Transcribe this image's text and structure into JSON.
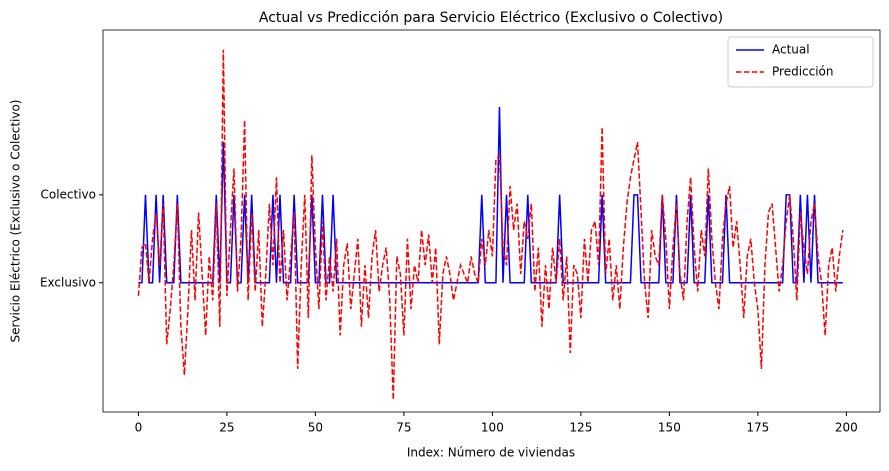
{
  "chart_data": {
    "type": "line",
    "title": "Actual vs Predicción para Servicio Eléctrico (Exclusivo o Colectivo)",
    "x_label": "Index: Número de viviendas",
    "y_label": "Servicio Eléctrico (Exclusivo o Colectivo)",
    "xlim": [
      -10,
      209.5
    ],
    "ylim": [
      -1.47,
      2.875
    ],
    "xticks": [
      0,
      25,
      50,
      75,
      100,
      125,
      150,
      175,
      200
    ],
    "yticks": [
      {
        "value": 0,
        "label": "Exclusivo"
      },
      {
        "value": 1,
        "label": "Colectivo"
      }
    ],
    "legend": "upper right",
    "grid": false,
    "x": [
      0,
      1,
      2,
      3,
      4,
      5,
      6,
      7,
      8,
      9,
      10,
      11,
      12,
      13,
      14,
      15,
      16,
      17,
      18,
      19,
      20,
      21,
      22,
      23,
      24,
      25,
      26,
      27,
      28,
      29,
      30,
      31,
      32,
      33,
      34,
      35,
      36,
      37,
      38,
      39,
      40,
      41,
      42,
      43,
      44,
      45,
      46,
      47,
      48,
      49,
      50,
      51,
      52,
      53,
      54,
      55,
      56,
      57,
      58,
      59,
      60,
      61,
      62,
      63,
      64,
      65,
      66,
      67,
      68,
      69,
      70,
      71,
      72,
      73,
      74,
      75,
      76,
      77,
      78,
      79,
      80,
      81,
      82,
      83,
      84,
      85,
      86,
      87,
      88,
      89,
      90,
      91,
      92,
      93,
      94,
      95,
      96,
      97,
      98,
      99,
      100,
      101,
      102,
      103,
      104,
      105,
      106,
      107,
      108,
      109,
      110,
      111,
      112,
      113,
      114,
      115,
      116,
      117,
      118,
      119,
      120,
      121,
      122,
      123,
      124,
      125,
      126,
      127,
      128,
      129,
      130,
      131,
      132,
      133,
      134,
      135,
      136,
      137,
      138,
      139,
      140,
      141,
      142,
      143,
      144,
      145,
      146,
      147,
      148,
      149,
      150,
      151,
      152,
      153,
      154,
      155,
      156,
      157,
      158,
      159,
      160,
      161,
      162,
      163,
      164,
      165,
      166,
      167,
      168,
      169,
      170,
      171,
      172,
      173,
      174,
      175,
      176,
      177,
      178,
      179,
      180,
      181,
      182,
      183,
      184,
      185,
      186,
      187,
      188,
      189,
      190,
      191,
      192,
      193,
      194,
      195,
      196,
      197,
      198,
      199
    ],
    "series": [
      {
        "name": "Actual",
        "color": "#0000ff",
        "dash": false,
        "values": [
          0,
          0,
          1,
          0,
          0,
          1,
          0,
          1,
          0,
          0,
          0,
          1,
          0,
          0,
          0,
          0,
          0,
          0,
          0,
          0,
          0,
          0,
          1,
          0,
          1.6,
          0,
          0,
          1,
          0,
          0,
          1,
          0,
          1,
          0,
          0,
          0,
          0,
          0,
          1,
          0,
          1,
          0,
          0,
          0,
          1,
          0,
          0,
          0,
          0,
          1,
          0,
          0,
          1,
          0,
          0,
          1,
          0,
          0,
          0,
          0,
          0,
          0,
          0,
          0,
          0,
          0,
          0,
          0,
          0,
          0,
          0,
          0,
          0,
          0,
          0,
          0,
          0,
          0,
          0,
          0,
          0,
          0,
          0,
          0,
          0,
          0,
          0,
          0,
          0,
          0,
          0,
          0,
          0,
          0,
          0,
          0,
          0,
          1,
          0,
          0,
          0,
          0,
          2,
          0,
          1,
          0,
          0,
          0,
          0,
          0,
          1,
          0,
          0,
          0,
          0,
          0,
          0,
          0,
          0,
          1,
          0,
          0,
          0,
          0,
          0,
          0,
          0,
          0,
          0,
          0,
          0,
          1,
          0,
          0,
          0,
          0,
          0,
          0,
          0,
          0,
          1,
          1,
          0,
          0,
          0,
          0,
          0,
          0,
          1,
          0,
          0,
          0,
          1,
          0,
          0,
          0,
          1,
          0,
          0,
          0,
          0,
          1,
          0,
          0,
          0,
          0,
          1,
          0,
          0,
          0,
          0,
          0,
          0,
          0,
          0,
          0,
          0,
          0,
          0,
          0,
          0,
          0,
          0,
          1,
          1,
          0,
          0,
          1,
          0,
          1,
          0,
          1,
          0,
          0,
          0,
          0,
          0,
          0,
          0,
          0
        ]
      },
      {
        "name": "Predicción",
        "color": "#ff0000",
        "dash": true,
        "values": [
          -0.15,
          0.4,
          0.45,
          0.0,
          0.5,
          0.8,
          0.2,
          0.9,
          -0.7,
          -0.3,
          0.2,
          0.9,
          -0.5,
          -1.05,
          -0.3,
          0.6,
          -0.2,
          0.8,
          0.1,
          -0.6,
          0.3,
          -0.2,
          0.9,
          -0.5,
          2.65,
          -0.15,
          0.6,
          1.3,
          -0.1,
          0.5,
          1.85,
          -0.2,
          0.8,
          -0.1,
          0.6,
          -0.5,
          0.1,
          0.9,
          0.2,
          1.2,
          0.0,
          0.6,
          -0.2,
          0.3,
          0.8,
          -0.98,
          0.2,
          1.0,
          -0.4,
          1.45,
          0.4,
          -0.3,
          0.7,
          -0.2,
          0.3,
          -0.1,
          0.5,
          -0.6,
          0.2,
          0.45,
          -0.3,
          0.1,
          0.5,
          -0.5,
          0.2,
          -0.4,
          0.3,
          0.6,
          -0.1,
          0.2,
          0.4,
          -0.2,
          -1.33,
          0.3,
          0.1,
          -0.6,
          0.5,
          -0.3,
          0.2,
          0.0,
          0.6,
          0.2,
          0.55,
          0.0,
          0.4,
          -0.7,
          0.1,
          0.3,
          0.1,
          -0.2,
          0.0,
          0.2,
          0.1,
          0.0,
          0.3,
          0.1,
          0.0,
          0.5,
          0.2,
          0.6,
          0.3,
          1.4,
          1.45,
          0.4,
          0.2,
          1.1,
          0.6,
          0.9,
          0.1,
          0.7,
          0.5,
          0.9,
          -0.1,
          0.4,
          -0.5,
          0.2,
          -0.3,
          0.4,
          0.0,
          0.5,
          -0.2,
          0.3,
          -0.8,
          0.2,
          0.1,
          -0.4,
          0.5,
          0.0,
          0.6,
          0.7,
          0.2,
          1.77,
          0.1,
          0.5,
          -0.2,
          0.2,
          -0.3,
          0.4,
          0.9,
          1.2,
          1.4,
          1.6,
          0.8,
          0.0,
          -0.4,
          0.6,
          0.3,
          0.2,
          1.0,
          0.5,
          -0.3,
          0.4,
          0.9,
          0.1,
          -0.2,
          0.7,
          1.2,
          0.4,
          -0.1,
          0.6,
          0.3,
          1.3,
          0.5,
          0.0,
          -0.3,
          0.5,
          0.9,
          1.1,
          0.4,
          0.7,
          0.2,
          -0.4,
          0.3,
          0.5,
          0.0,
          -0.3,
          -0.98,
          0.2,
          0.8,
          0.9,
          0.4,
          -0.1,
          0.2,
          0.7,
          1.0,
          0.5,
          -0.2,
          0.8,
          0.4,
          0.1,
          0.7,
          0.9,
          0.3,
          0.0,
          -0.6,
          0.2,
          0.4,
          -0.1,
          0.3,
          0.6
        ]
      }
    ]
  }
}
